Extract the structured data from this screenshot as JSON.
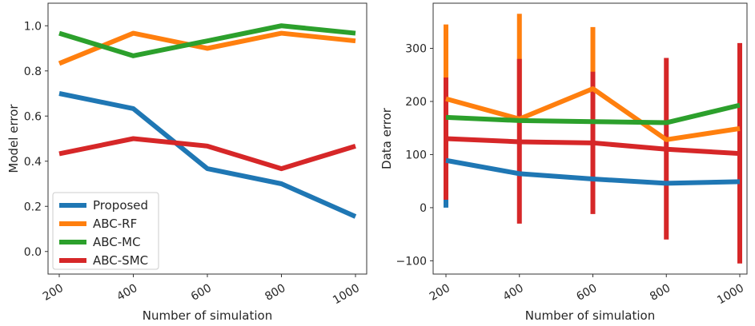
{
  "chart_data": [
    {
      "type": "line",
      "title": "",
      "xlabel": "Number of simulation",
      "ylabel": "Model error",
      "x": [
        200,
        400,
        600,
        800,
        1000
      ],
      "x_ticks": [
        "200",
        "400",
        "600",
        "800",
        "1000"
      ],
      "y_ticks": [
        "0.0",
        "0.2",
        "0.4",
        "0.6",
        "0.8",
        "1.0"
      ],
      "ylim": [
        -0.1,
        1.1
      ],
      "grid": false,
      "legend_position": "lower-left",
      "series": [
        {
          "name": "Proposed",
          "color": "#1f77b4",
          "values": [
            0.7,
            0.633,
            0.367,
            0.3,
            0.155
          ]
        },
        {
          "name": "ABC-RF",
          "color": "#ff7f0e",
          "values": [
            0.833,
            0.967,
            0.9,
            0.967,
            0.933
          ]
        },
        {
          "name": "ABC-MC",
          "color": "#2ca02c",
          "values": [
            0.967,
            0.867,
            0.933,
            1.0,
            0.967
          ]
        },
        {
          "name": "ABC-SMC",
          "color": "#d62728",
          "values": [
            0.433,
            0.5,
            0.467,
            0.367,
            0.467
          ]
        }
      ]
    },
    {
      "type": "line",
      "title": "",
      "xlabel": "Number of simulation",
      "ylabel": "Data error",
      "x": [
        200,
        400,
        600,
        800,
        1000
      ],
      "x_ticks": [
        "200",
        "400",
        "600",
        "800",
        "1000"
      ],
      "y_ticks": [
        "−100",
        "0",
        "100",
        "200",
        "300"
      ],
      "y_tick_values": [
        -100,
        0,
        100,
        200,
        300
      ],
      "ylim": [
        -125,
        385
      ],
      "grid": false,
      "series": [
        {
          "name": "Proposed",
          "color": "#1f77b4",
          "values": [
            89,
            64,
            54,
            46,
            49
          ],
          "err_low": [
            0,
            null,
            null,
            null,
            null
          ],
          "err_high": [
            null,
            null,
            null,
            null,
            null
          ]
        },
        {
          "name": "ABC-RF",
          "color": "#ff7f0e",
          "values": [
            205,
            167,
            224,
            128,
            149
          ],
          "err_low": [
            null,
            null,
            null,
            null,
            null
          ],
          "err_high": [
            345,
            365,
            340,
            null,
            null
          ]
        },
        {
          "name": "ABC-MC",
          "color": "#2ca02c",
          "values": [
            170,
            164,
            162,
            160,
            193
          ],
          "err_low": [
            null,
            null,
            null,
            null,
            null
          ],
          "err_high": [
            null,
            null,
            null,
            null,
            null
          ]
        },
        {
          "name": "ABC-SMC",
          "color": "#d62728",
          "values": [
            130,
            124,
            122,
            110,
            102
          ],
          "err_low": [
            15,
            -30,
            -12,
            -60,
            -105
          ],
          "err_high": [
            245,
            280,
            256,
            282,
            310
          ]
        }
      ]
    }
  ]
}
